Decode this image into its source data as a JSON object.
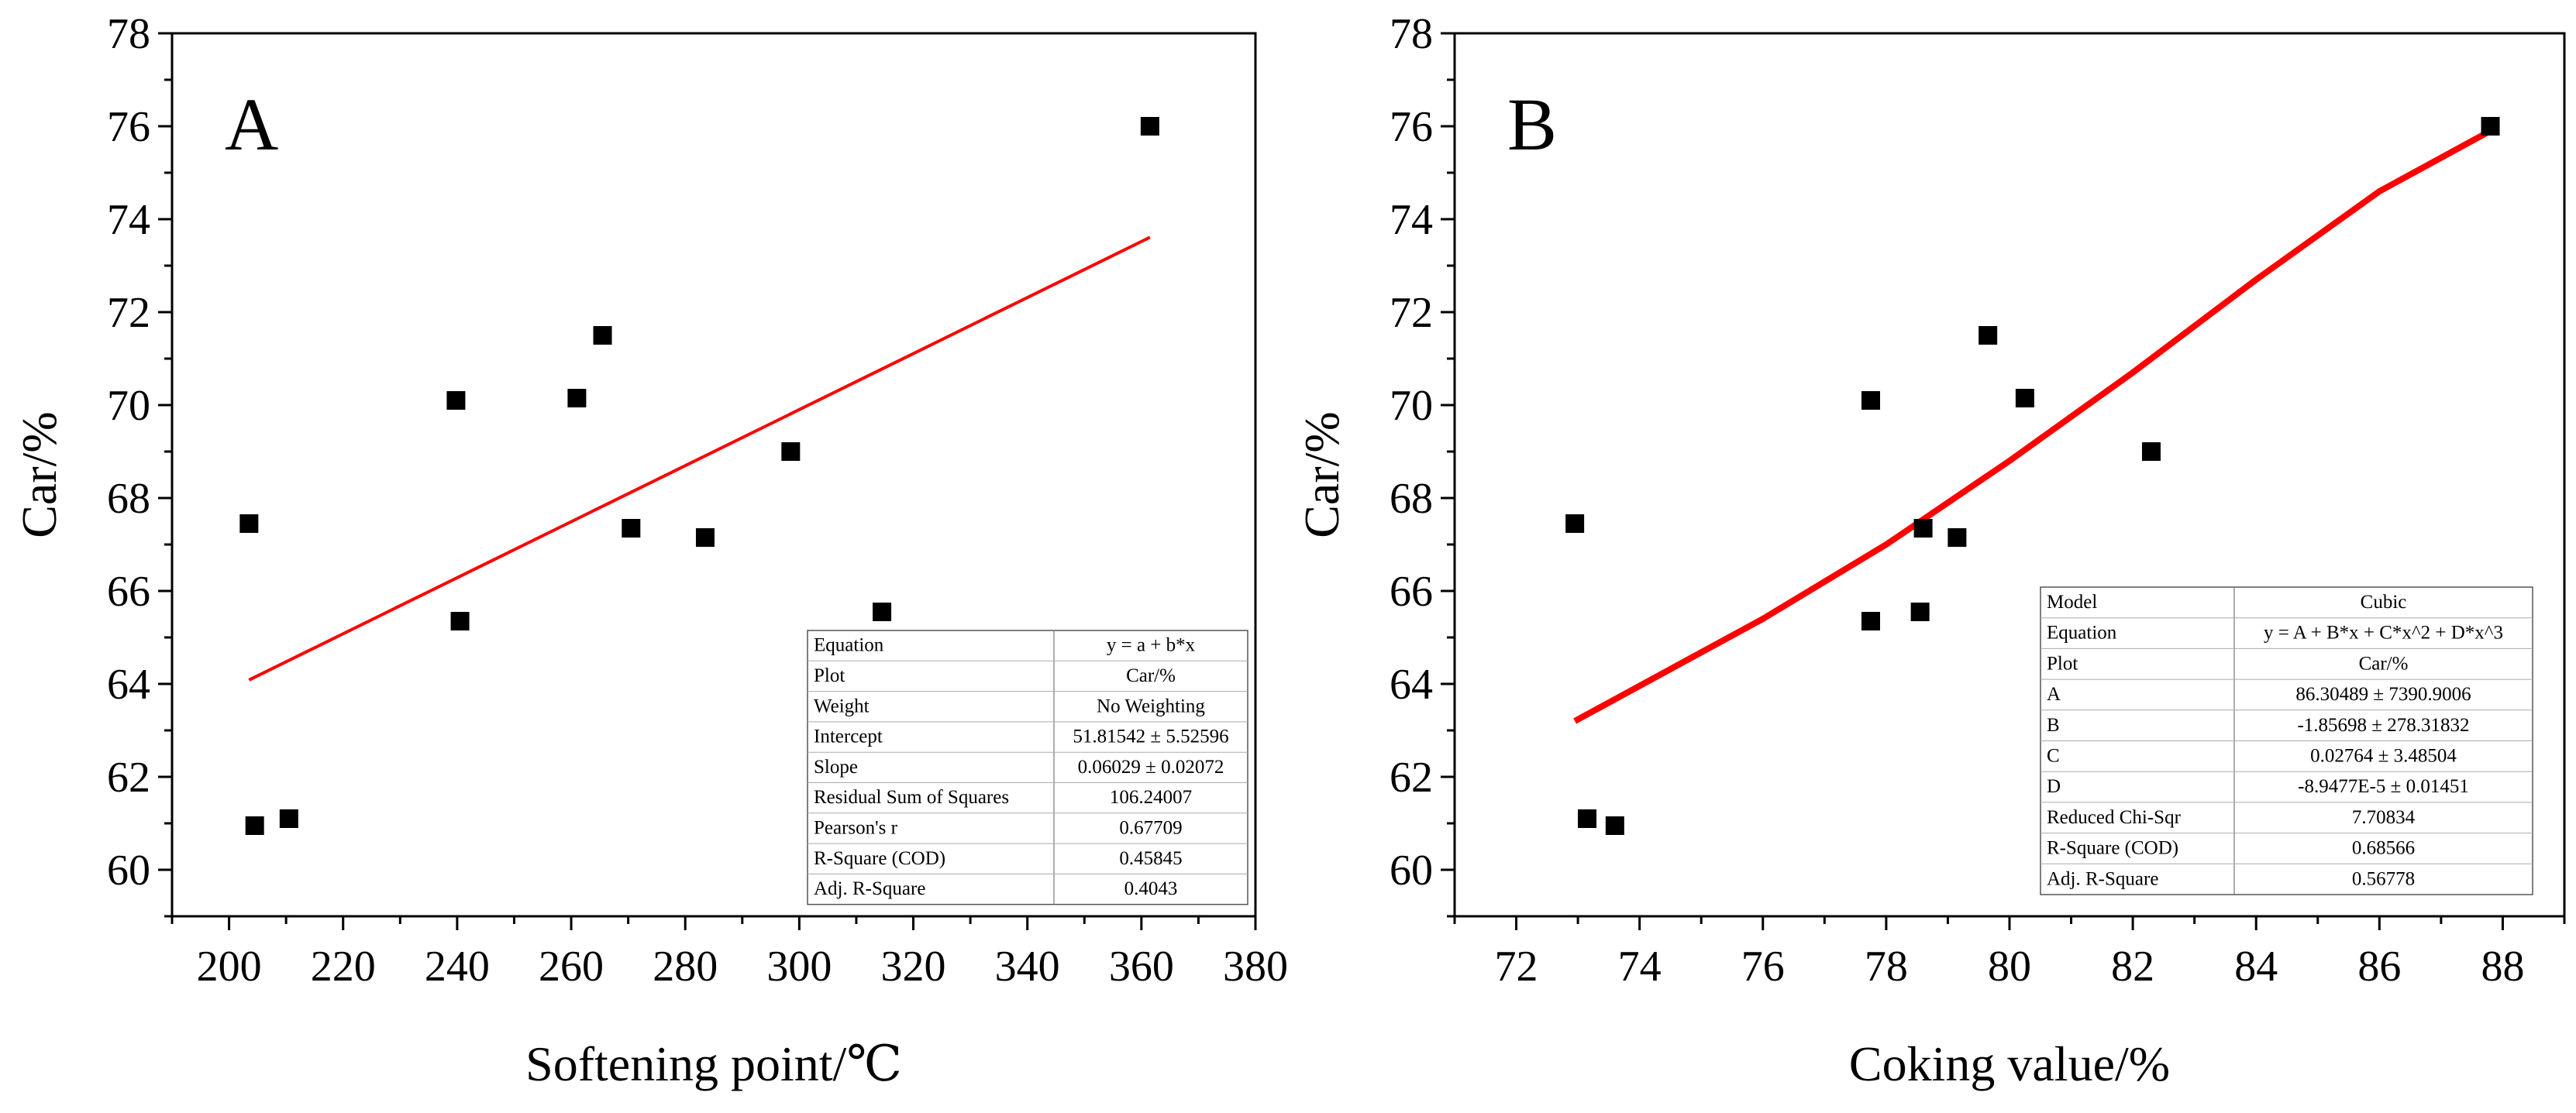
{
  "chart_data": [
    {
      "panel": "A",
      "type": "scatter",
      "xlabel": "Softening point/℃",
      "ylabel": "Car/%",
      "xlim": [
        190,
        380
      ],
      "ylim": [
        59,
        78
      ],
      "xticks": [
        200,
        220,
        240,
        260,
        280,
        300,
        320,
        340,
        360,
        380
      ],
      "yticks": [
        60,
        62,
        64,
        66,
        68,
        70,
        72,
        74,
        76,
        78
      ],
      "points": [
        {
          "x": 203.5,
          "y": 67.45
        },
        {
          "x": 204.5,
          "y": 60.95
        },
        {
          "x": 210.5,
          "y": 61.1
        },
        {
          "x": 239.8,
          "y": 70.1
        },
        {
          "x": 240.5,
          "y": 65.35
        },
        {
          "x": 261,
          "y": 70.15
        },
        {
          "x": 265.5,
          "y": 71.5
        },
        {
          "x": 270.5,
          "y": 67.35
        },
        {
          "x": 283.5,
          "y": 67.15
        },
        {
          "x": 298.5,
          "y": 69.0
        },
        {
          "x": 314.5,
          "y": 65.55
        },
        {
          "x": 361.5,
          "y": 76.0
        }
      ],
      "fit": {
        "model": "linear",
        "intercept": 51.81542,
        "slope": 0.06029,
        "x_range": [
          203.5,
          361.5
        ],
        "color": "#ff0000"
      },
      "stats_table": [
        [
          "Equation",
          "y = a + b*x"
        ],
        [
          "Plot",
          "Car/%"
        ],
        [
          "Weight",
          "No Weighting"
        ],
        [
          "Intercept",
          "51.81542 ± 5.52596"
        ],
        [
          "Slope",
          "0.06029 ± 0.02072"
        ],
        [
          "Residual Sum of Squares",
          "106.24007"
        ],
        [
          "Pearson's r",
          "0.67709"
        ],
        [
          "R-Square (COD)",
          "0.45845"
        ],
        [
          "Adj. R-Square",
          "0.4043"
        ]
      ]
    },
    {
      "panel": "B",
      "type": "scatter",
      "xlabel": "Coking value/%",
      "ylabel": "Car/%",
      "xlim": [
        71,
        89
      ],
      "ylim": [
        59,
        78
      ],
      "xticks": [
        72,
        74,
        76,
        78,
        80,
        82,
        84,
        86,
        88
      ],
      "yticks": [
        60,
        62,
        64,
        66,
        68,
        70,
        72,
        74,
        76,
        78
      ],
      "points": [
        {
          "x": 72.95,
          "y": 67.45
        },
        {
          "x": 73.15,
          "y": 61.1
        },
        {
          "x": 73.6,
          "y": 60.95
        },
        {
          "x": 77.75,
          "y": 70.1
        },
        {
          "x": 77.75,
          "y": 65.35
        },
        {
          "x": 78.55,
          "y": 65.55
        },
        {
          "x": 78.6,
          "y": 67.35
        },
        {
          "x": 79.15,
          "y": 67.15
        },
        {
          "x": 79.65,
          "y": 71.5
        },
        {
          "x": 80.25,
          "y": 70.15
        },
        {
          "x": 82.3,
          "y": 69.0
        },
        {
          "x": 87.8,
          "y": 76.0
        }
      ],
      "fit": {
        "model": "cubic",
        "curve": [
          {
            "x": 72.95,
            "y": 63.2
          },
          {
            "x": 76.0,
            "y": 65.4
          },
          {
            "x": 78.0,
            "y": 67.0
          },
          {
            "x": 80.0,
            "y": 68.8
          },
          {
            "x": 82.0,
            "y": 70.7
          },
          {
            "x": 84.0,
            "y": 72.7
          },
          {
            "x": 86.0,
            "y": 74.6
          },
          {
            "x": 87.8,
            "y": 75.9
          }
        ],
        "color": "#ff0000"
      },
      "stats_table": [
        [
          "Model",
          "Cubic"
        ],
        [
          "Equation",
          "y = A + B*x + C*x^2 + D*x^3"
        ],
        [
          "Plot",
          "Car/%"
        ],
        [
          "A",
          "86.30489 ± 7390.9006"
        ],
        [
          "B",
          "-1.85698 ± 278.31832"
        ],
        [
          "C",
          "0.02764 ± 3.48504"
        ],
        [
          "D",
          "-8.9477E-5 ± 0.01451"
        ],
        [
          "Reduced Chi-Sqr",
          "7.70834"
        ],
        [
          "R-Square (COD)",
          "0.68566"
        ],
        [
          "Adj. R-Square",
          "0.56778"
        ]
      ]
    }
  ]
}
